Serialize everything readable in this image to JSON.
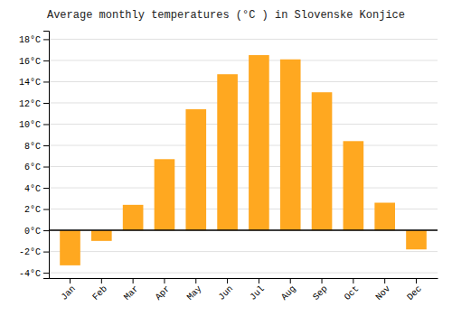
{
  "chart_data": {
    "type": "bar",
    "title": "Average monthly temperatures (°C ) in Slovenske Konjice",
    "categories": [
      "Jan",
      "Feb",
      "Mar",
      "Apr",
      "May",
      "Jun",
      "Jul",
      "Aug",
      "Sep",
      "Oct",
      "Nov",
      "Dec"
    ],
    "values": [
      -3.3,
      -1.0,
      2.4,
      6.7,
      11.4,
      14.7,
      16.5,
      16.1,
      13.0,
      8.4,
      2.6,
      -1.8
    ],
    "color": "#FFA820",
    "ylim": [
      -4.5,
      18.8
    ],
    "yticks": [
      {
        "value": -4,
        "label": "-4°C"
      },
      {
        "value": -2,
        "label": "-2°C"
      },
      {
        "value": 0,
        "label": "0°C"
      },
      {
        "value": 2,
        "label": "2°C"
      },
      {
        "value": 4,
        "label": "4°C"
      },
      {
        "value": 6,
        "label": "6°C"
      },
      {
        "value": 8,
        "label": "8°C"
      },
      {
        "value": 10,
        "label": "10°C"
      },
      {
        "value": 12,
        "label": "12°C"
      },
      {
        "value": 14,
        "label": "14°C"
      },
      {
        "value": 16,
        "label": "16°C"
      },
      {
        "value": 18,
        "label": "18°C"
      }
    ],
    "grid": true
  }
}
